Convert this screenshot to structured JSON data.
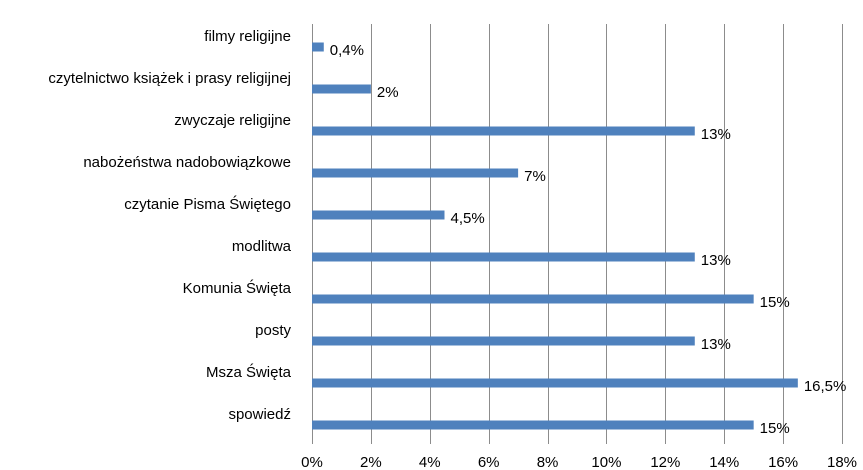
{
  "chart_data": {
    "type": "bar",
    "orientation": "horizontal",
    "categories": [
      "filmy religijne",
      "czytelnictwo książek i prasy religijnej",
      "zwyczaje religijne",
      "nabożeństwa nadobowiązkowe",
      "czytanie Pisma Świętego",
      "modlitwa",
      "Komunia Święta",
      "posty",
      "Msza Święta",
      "spowiedź"
    ],
    "values": [
      0.4,
      2,
      13,
      7,
      4.5,
      13,
      15,
      13,
      16.5,
      15
    ],
    "data_labels": [
      "0,4%",
      "2%",
      "13%",
      "7%",
      "4,5%",
      "13%",
      "15%",
      "13%",
      "16,5%",
      "15%"
    ],
    "xlim": [
      0,
      18
    ],
    "x_ticks": [
      0,
      2,
      4,
      6,
      8,
      10,
      12,
      14,
      16,
      18
    ],
    "x_tick_labels": [
      "0%",
      "2%",
      "4%",
      "6%",
      "8%",
      "10%",
      "12%",
      "14%",
      "16%",
      "18%"
    ],
    "grid": true,
    "legend": "none",
    "bar_color": "#4f81bd"
  }
}
